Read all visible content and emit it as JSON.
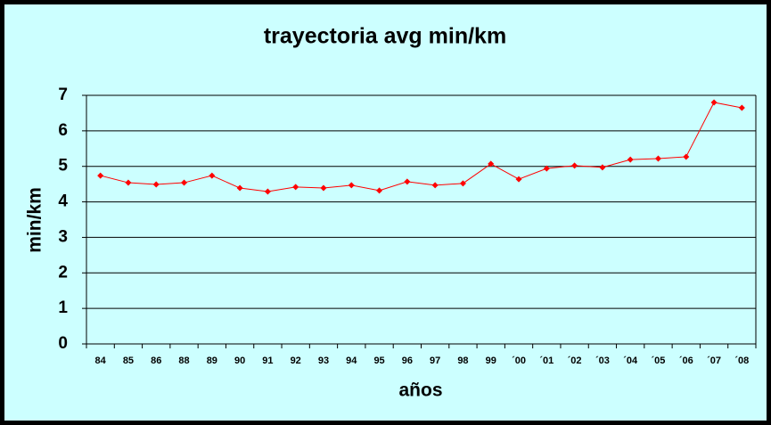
{
  "chart_data": {
    "type": "line",
    "title": "trayectoria avg min/km",
    "x_label": "años",
    "y_label": "min/km",
    "categories": [
      "84",
      "85",
      "86",
      "88",
      "89",
      "90",
      "91",
      "92",
      "93",
      "94",
      "95",
      "96",
      "97",
      "98",
      "99",
      "´00",
      "´01",
      "´02",
      "´03",
      "´04",
      "´05",
      "´06",
      "´07",
      "´08"
    ],
    "series": [
      {
        "name": "avg min/km",
        "color": "#ff0000",
        "values": [
          4.74,
          4.54,
          4.49,
          4.54,
          4.74,
          4.39,
          4.29,
          4.42,
          4.39,
          4.47,
          4.32,
          4.57,
          4.47,
          4.52,
          5.07,
          4.64,
          4.94,
          5.02,
          4.97,
          5.19,
          5.22,
          5.27,
          6.8,
          6.65
        ]
      }
    ],
    "ylim": [
      0,
      7
    ],
    "yticks": [
      0,
      1,
      2,
      3,
      4,
      5,
      6,
      7
    ],
    "grid": true
  }
}
